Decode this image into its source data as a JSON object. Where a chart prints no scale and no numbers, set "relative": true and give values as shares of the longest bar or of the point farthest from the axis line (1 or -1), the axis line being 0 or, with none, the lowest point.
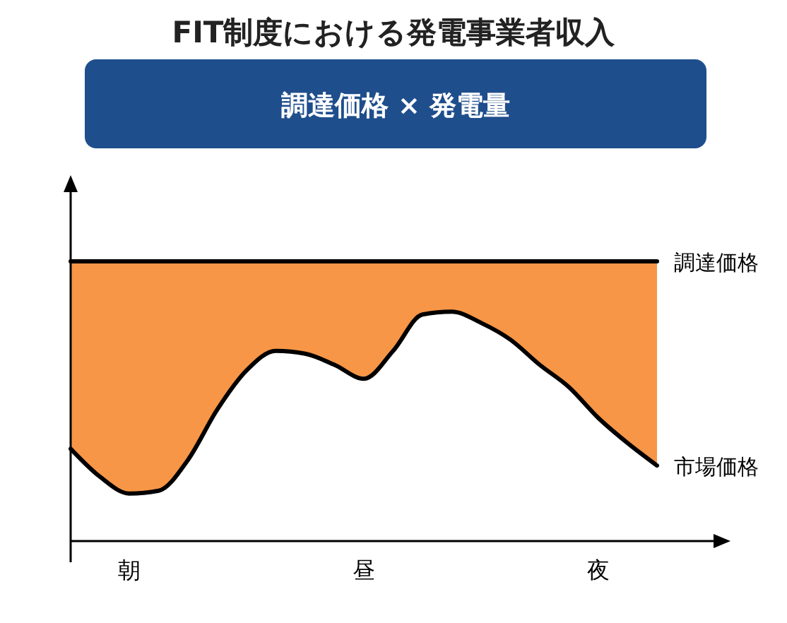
{
  "chart_data": {
    "type": "line",
    "title": "FIT制度における発電事業者収入",
    "subtitle": "調達価格 × 発電量",
    "relative": true,
    "categories": [
      null,
      null,
      "朝",
      null,
      null,
      null,
      null,
      null,
      null,
      null,
      "昼",
      null,
      null,
      null,
      null,
      null,
      null,
      null,
      "夜",
      null,
      null
    ],
    "series": [
      {
        "type": "area",
        "color": "#f79646",
        "values": [
          1,
          1,
          1,
          1,
          1,
          1,
          1,
          1,
          1,
          1,
          1,
          1,
          1,
          1,
          1,
          1,
          1,
          1,
          1,
          1,
          1
        ]
      },
      {
        "name": "調達価格",
        "color": "#000000",
        "values": [
          1,
          1,
          1,
          1,
          1,
          1,
          1,
          1,
          1,
          1,
          1,
          1,
          1,
          1,
          1,
          1,
          1,
          1,
          1,
          1,
          1
        ]
      },
      {
        "name": "市場価格",
        "color": "#000000",
        "values": [
          0.33,
          0.23,
          0.17,
          0.18,
          0.29,
          0.47,
          0.61,
          0.68,
          0.67,
          0.63,
          0.58,
          0.68,
          0.81,
          0.82,
          0.78,
          0.72,
          0.63,
          0.55,
          0.44,
          0.35,
          0.27
        ]
      }
    ]
  }
}
